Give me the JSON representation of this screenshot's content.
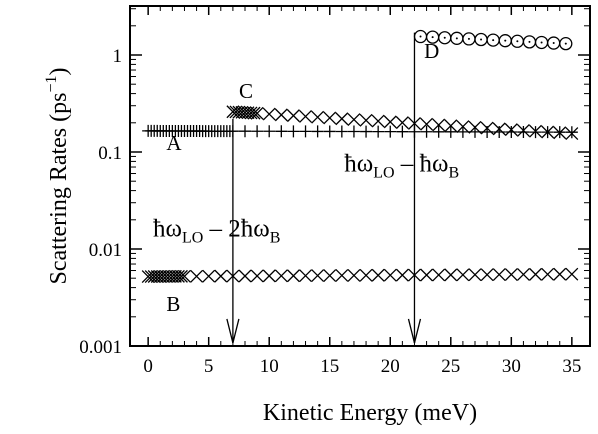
{
  "chart_data": {
    "type": "scatter",
    "xlabel": "Kinetic Energy  (meV)",
    "ylabel": "Scattering Rates (ps",
    "ylabel_sup": "−1",
    "ylabel_close": ")",
    "xlim": [
      -1.5,
      36.5
    ],
    "ylim": [
      0.001,
      3.2
    ],
    "y_scale": "log",
    "grid": false,
    "x_ticks": [
      0,
      5,
      10,
      15,
      20,
      25,
      30,
      35
    ],
    "y_ticks": [
      0.001,
      0.01,
      0.1,
      1
    ],
    "x_tick_labels": [
      "0",
      "5",
      "10",
      "15",
      "20",
      "25",
      "30",
      "35"
    ],
    "y_tick_labels": [
      "0.001",
      "0.01",
      "0.1",
      "1"
    ],
    "series": [
      {
        "marker": "plus",
        "x_start": 0.0,
        "x_end": 35.0,
        "dx_dense": 0.25,
        "dense_until": 7.0,
        "dx": 1.0,
        "y_start": 0.165,
        "y_end": 0.16
      },
      {
        "marker": "x",
        "x_start": 0.0,
        "x_end": 35.0,
        "dx_dense": 0.25,
        "dense_until": 3.0,
        "dx": 1.0,
        "y_start": 0.0052,
        "y_end": 0.0055
      },
      {
        "marker": "x",
        "x_start": 7.0,
        "x_end": 35.0,
        "dx_dense": 0.25,
        "dense_until": 9.0,
        "dx": 1.0,
        "y_start": 0.26,
        "y_end": 0.155
      },
      {
        "marker": "circle",
        "x_start": 22.5,
        "x_end": 35.0,
        "dx": 1.0,
        "y_start": 1.55,
        "y_end": 1.3
      }
    ],
    "curve_labels": [
      {
        "text": "A",
        "x": 1.5,
        "y": 0.105
      },
      {
        "text": "B",
        "x": 1.5,
        "y": 0.0023
      },
      {
        "text": "C",
        "x": 7.5,
        "y": 0.36
      },
      {
        "text": "D",
        "x": 22.8,
        "y": 0.93
      }
    ],
    "annotations": [
      {
        "parts": [
          "ħω",
          "LO",
          " – 2ħω",
          "B"
        ],
        "x": 0.4,
        "y": 0.0135
      },
      {
        "parts": [
          "ħω",
          "LO",
          " – ħω",
          "B"
        ],
        "x": 16.2,
        "y": 0.063
      }
    ],
    "arrows": [
      {
        "x": 7.0,
        "y_from": 0.22,
        "y_to": 0.00105
      },
      {
        "x": 22.0,
        "y_from": 1.7,
        "y_to": 0.00105
      }
    ]
  }
}
